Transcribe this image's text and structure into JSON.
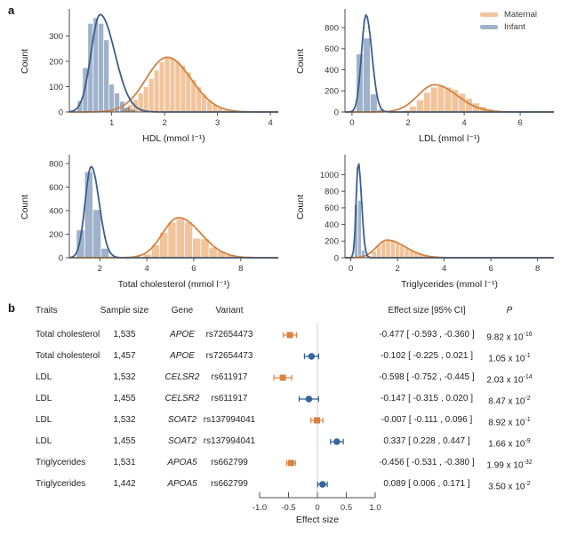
{
  "figure": {
    "panel_a_label": "a",
    "panel_b_label": "b"
  },
  "legend": {
    "items": [
      {
        "label": "Maternal",
        "color": "#F2C49C"
      },
      {
        "label": "Infant",
        "color": "#9FB2CB"
      }
    ]
  },
  "style": {
    "maternal_fill": "#F2C49C",
    "maternal_line": "#D2813F",
    "infant_fill": "#9FB2CB",
    "infant_line": "#3B5E8A",
    "forest_maternal": "#DB8140",
    "forest_infant": "#33679B",
    "forest_infant_errbar": "#2F5E90",
    "axis_color": "#4d4d4d",
    "text_color": "#333333",
    "ref_line_color": "#cccccc"
  },
  "chart_data": [
    {
      "id": "hdl",
      "type": "histogram",
      "title": "HDL (mmol l⁻¹)",
      "ylabel": "Count",
      "xlim": [
        0.2,
        4.15
      ],
      "ylim": [
        0,
        400
      ],
      "xticks": [
        1,
        2,
        3,
        4
      ],
      "yticks": [
        0,
        100,
        200,
        300
      ],
      "series": [
        {
          "name": "Maternal",
          "role": "maternal",
          "bin_start": 1.2,
          "bin_width": 0.1,
          "counts": [
            15,
            28,
            50,
            75,
            100,
            132,
            165,
            198,
            220,
            214,
            200,
            184,
            158,
            128,
            99,
            70,
            46,
            29,
            17,
            9,
            4
          ],
          "curve": {
            "mu": 2.05,
            "sigma_left": 0.4,
            "sigma_right": 0.45,
            "peak": 216
          }
        },
        {
          "name": "Infant",
          "role": "infant",
          "bin_start": 0.35,
          "bin_width": 0.1,
          "counts": [
            45,
            175,
            350,
            372,
            350,
            285,
            110,
            75,
            42,
            20,
            10
          ],
          "curve": {
            "mu": 0.78,
            "sigma_left": 0.17,
            "sigma_right": 0.28,
            "peak": 385
          }
        }
      ]
    },
    {
      "id": "ldl",
      "type": "histogram",
      "title": "LDL (mmol  l⁻¹)",
      "ylabel": "Count",
      "xlim": [
        -0.25,
        7.2
      ],
      "ylim": [
        0,
        960
      ],
      "xticks": [
        0,
        2,
        4,
        6
      ],
      "yticks": [
        0,
        200,
        400,
        600,
        800
      ],
      "series": [
        {
          "name": "Maternal",
          "role": "maternal",
          "bin_start": 1.8,
          "bin_width": 0.25,
          "counts": [
            18,
            55,
            115,
            185,
            235,
            245,
            235,
            212,
            175,
            128,
            85,
            52,
            30,
            16,
            8
          ],
          "curve": {
            "mu": 2.95,
            "sigma_left": 0.6,
            "sigma_right": 0.8,
            "peak": 258
          }
        },
        {
          "name": "Infant",
          "role": "infant",
          "bin_start": 0.15,
          "bin_width": 0.25,
          "counts": [
            550,
            700,
            170,
            25
          ],
          "curve": {
            "mu": 0.5,
            "sigma_left": 0.16,
            "sigma_right": 0.21,
            "peak": 920
          }
        }
      ]
    },
    {
      "id": "tc",
      "type": "histogram",
      "title": "Total cholesterol (mmol  l⁻¹)",
      "ylabel": "Count",
      "xlim": [
        0.7,
        9.6
      ],
      "ylim": [
        0,
        860
      ],
      "xticks": [
        2,
        4,
        6,
        8
      ],
      "yticks": [
        0,
        200,
        400,
        600,
        800
      ],
      "series": [
        {
          "name": "Maternal",
          "role": "maternal",
          "bin_start": 3.85,
          "bin_width": 0.35,
          "counts": [
            30,
            110,
            215,
            300,
            330,
            305,
            165,
            160,
            90,
            55,
            25,
            10
          ],
          "curve": {
            "mu": 5.35,
            "sigma_left": 0.68,
            "sigma_right": 0.95,
            "peak": 340
          }
        },
        {
          "name": "Infant",
          "role": "infant",
          "bin_start": 1.0,
          "bin_width": 0.35,
          "counts": [
            235,
            730,
            408,
            80,
            12
          ],
          "curve": {
            "mu": 1.63,
            "sigma_left": 0.26,
            "sigma_right": 0.34,
            "peak": 775
          }
        }
      ]
    },
    {
      "id": "tg",
      "type": "histogram",
      "title": "Triglycerides (mmol  l⁻¹)",
      "ylabel": "Count",
      "xlim": [
        -0.25,
        8.7
      ],
      "ylim": [
        0,
        1220
      ],
      "xticks": [
        0,
        2,
        4,
        6,
        8
      ],
      "yticks": [
        0,
        200,
        400,
        600,
        800,
        1000
      ],
      "series": [
        {
          "name": "Maternal",
          "role": "maternal",
          "bin_start": 0.7,
          "bin_width": 0.2,
          "counts": [
            25,
            80,
            150,
            195,
            210,
            198,
            175,
            148,
            118,
            90,
            65,
            45,
            30,
            18,
            10,
            5
          ],
          "curve": {
            "mu": 1.55,
            "sigma_left": 0.45,
            "sigma_right": 0.8,
            "peak": 212
          }
        },
        {
          "name": "Infant",
          "role": "infant",
          "bin_start": 0.15,
          "bin_width": 0.15,
          "counts": [
            640,
            690,
            90,
            15
          ],
          "curve": {
            "mu": 0.32,
            "sigma_left": 0.09,
            "sigma_right": 0.14,
            "peak": 1150
          }
        }
      ]
    },
    {
      "id": "forest",
      "type": "forest",
      "xlabel": "Effect size",
      "xlim": [
        -1.0,
        1.0
      ],
      "xticks": [
        -1.0,
        -0.5,
        0,
        0.5,
        1.0
      ],
      "tick_labels": [
        "-1.0",
        "-0.5",
        "0",
        "0.5",
        "1.0"
      ],
      "columns": [
        {
          "key": "traits",
          "label": "Traits"
        },
        {
          "key": "n",
          "label": "Sample size"
        },
        {
          "key": "gene",
          "label": "Gene"
        },
        {
          "key": "variant",
          "label": "Variant"
        },
        {
          "key": "effect",
          "label": "Effect size [95% CI]"
        },
        {
          "key": "p",
          "label": "P"
        }
      ],
      "rows": [
        {
          "trait": "Total cholesterol",
          "sample_size": "1,535",
          "gene": "APOE",
          "variant": "rs72654473",
          "effect": -0.477,
          "ci_low": -0.593,
          "ci_high": -0.36,
          "effect_label": "-0.477 [ -0.593 , -0.360 ]",
          "p_base": "9.82 x 10",
          "p_exp": "-16",
          "group": "maternal"
        },
        {
          "trait": "Total cholesterol",
          "sample_size": "1,457",
          "gene": "APOE",
          "variant": "rs72654473",
          "effect": -0.102,
          "ci_low": -0.225,
          "ci_high": 0.021,
          "effect_label": "-0.102 [ -0.225 , 0.021 ]",
          "p_base": "1.05 x 10",
          "p_exp": "-1",
          "group": "infant"
        },
        {
          "trait": "LDL",
          "sample_size": "1,532",
          "gene": "CELSR2",
          "variant": "rs611917",
          "effect": -0.598,
          "ci_low": -0.752,
          "ci_high": -0.445,
          "effect_label": "-0.598 [ -0.752 , -0.445 ]",
          "p_base": "2.03 x 10",
          "p_exp": "-14",
          "group": "maternal"
        },
        {
          "trait": "LDL",
          "sample_size": "1,455",
          "gene": "CELSR2",
          "variant": "rs611917",
          "effect": -0.147,
          "ci_low": -0.315,
          "ci_high": 0.02,
          "effect_label": "-0.147 [ -0.315 , 0.020 ]",
          "p_base": "8.47 x 10",
          "p_exp": "-2",
          "group": "infant"
        },
        {
          "trait": "LDL",
          "sample_size": "1,532",
          "gene": "SOAT2",
          "variant": "rs137994041",
          "effect": -0.007,
          "ci_low": -0.111,
          "ci_high": 0.096,
          "effect_label": "-0.007 [ -0.111 , 0.096 ]",
          "p_base": "8.92 x 10",
          "p_exp": "-1",
          "group": "maternal"
        },
        {
          "trait": "LDL",
          "sample_size": "1,455",
          "gene": "SOAT2",
          "variant": "rs137994041",
          "effect": 0.337,
          "ci_low": 0.228,
          "ci_high": 0.447,
          "effect_label": "0.337 [ 0.228 , 0.447 ]",
          "p_base": "1.66 x 10",
          "p_exp": "-9",
          "group": "infant"
        },
        {
          "trait": "Triglycerides",
          "sample_size": "1,531",
          "gene": "APOA5",
          "variant": "rs662799",
          "effect": -0.456,
          "ci_low": -0.531,
          "ci_high": -0.38,
          "effect_label": "-0.456 [ -0.531 , -0.380 ]",
          "p_base": "1.99 x 10",
          "p_exp": "-32",
          "group": "maternal"
        },
        {
          "trait": "Triglycerides",
          "sample_size": "1,442",
          "gene": "APOA5",
          "variant": "rs662799",
          "effect": 0.089,
          "ci_low": 0.006,
          "ci_high": 0.171,
          "effect_label": "0.089 [ 0.006 , 0.171 ]",
          "p_base": "3.50 x 10",
          "p_exp": "-2",
          "group": "infant"
        }
      ]
    }
  ]
}
